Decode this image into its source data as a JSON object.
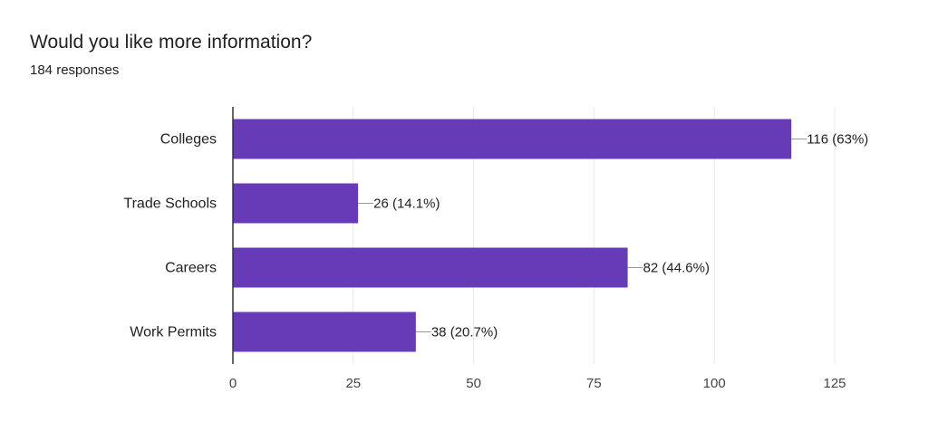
{
  "header": {
    "title": "Would you like more information?",
    "responses": "184 responses"
  },
  "colors": {
    "bar": "#673ab7",
    "grid": "#e8e8e8",
    "axis": "#333333",
    "connector": "#999999"
  },
  "chart_data": {
    "type": "bar",
    "orientation": "horizontal",
    "categories": [
      "Colleges",
      "Trade Schools",
      "Careers",
      "Work Permits"
    ],
    "values": [
      116,
      26,
      82,
      38
    ],
    "data_labels": [
      "116 (63%)",
      "26 (14.1%)",
      "82 (44.6%)",
      "38 (20.7%)"
    ],
    "xticks": [
      0,
      25,
      50,
      75,
      100,
      125
    ],
    "xlim": [
      0,
      125
    ],
    "grid": true,
    "legend": "none"
  }
}
